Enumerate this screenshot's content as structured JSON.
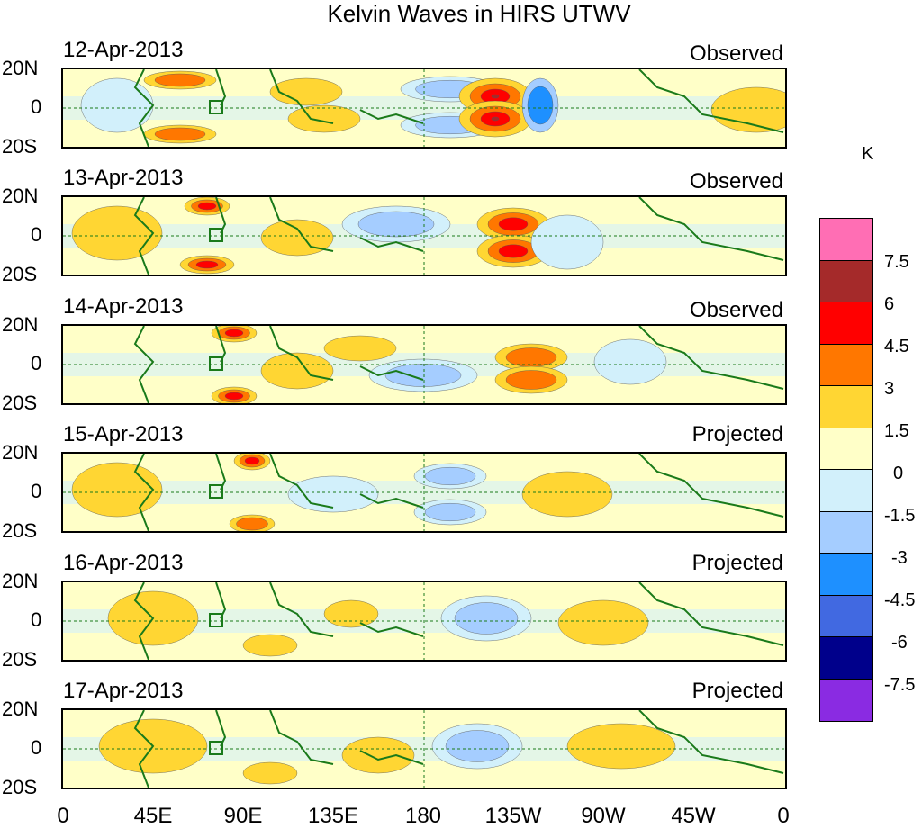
{
  "title": "Kelvin Waves in HIRS UTWV",
  "panels": [
    {
      "date": "12-Apr-2013",
      "status": "Observed"
    },
    {
      "date": "13-Apr-2013",
      "status": "Observed"
    },
    {
      "date": "14-Apr-2013",
      "status": "Observed"
    },
    {
      "date": "15-Apr-2013",
      "status": "Projected"
    },
    {
      "date": "16-Apr-2013",
      "status": "Projected"
    },
    {
      "date": "17-Apr-2013",
      "status": "Projected"
    }
  ],
  "y_labels": [
    "20N",
    "0",
    "20S"
  ],
  "x_labels": [
    "0",
    "45E",
    "90E",
    "135E",
    "180",
    "135W",
    "90W",
    "45W",
    "0"
  ],
  "colorbar": {
    "unit": "K",
    "labels": [
      "7.5",
      "6",
      "4.5",
      "3",
      "1.5",
      "0",
      "-1.5",
      "-3",
      "-4.5",
      "-6",
      "-7.5"
    ],
    "colors": [
      "#ff6eb4",
      "#a52a2a",
      "#ff0000",
      "#ff7700",
      "#ffd633",
      "#ffffc8",
      "#d2f0fb",
      "#a5cdff",
      "#1e90ff",
      "#4169e1",
      "#00008b",
      "#8a2be2"
    ]
  }
}
